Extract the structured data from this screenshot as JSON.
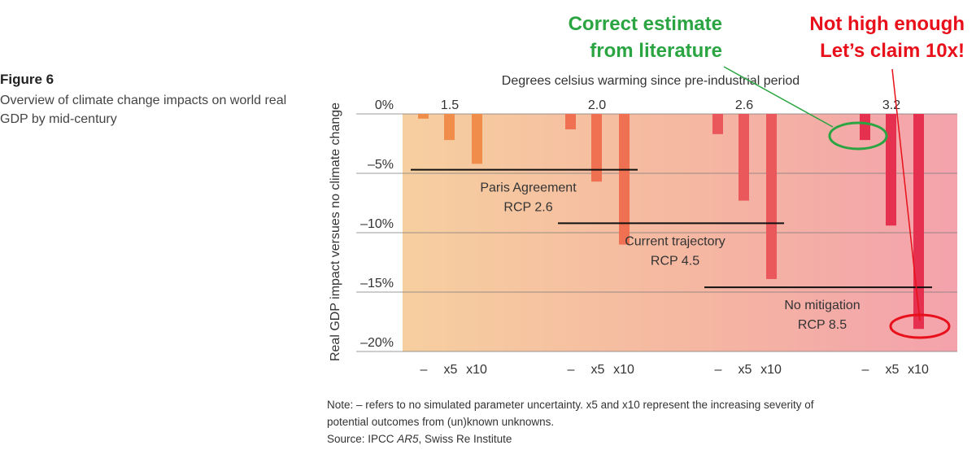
{
  "figure": {
    "label": "Figure 6",
    "description": "Overview of climate change impacts on world real GDP by mid-century"
  },
  "note": {
    "line1": "Note: – refers to no simulated parameter uncertainty. x5 and x10 represent the increasing severity of",
    "line2": "potential outcomes from (un)known unknowns.",
    "source_prefix": "Source: IPCC ",
    "source_italic": "AR5",
    "source_suffix": ", Swiss Re Institute"
  },
  "annotations": {
    "correct_line1": "Correct estimate",
    "correct_line2": "from literature",
    "claim_line1": "Not high enough",
    "claim_line2": "Let’s claim 10x!",
    "correct_color": "#2aa542",
    "claim_color": "#e8101b"
  },
  "chart_data": {
    "type": "bar",
    "title": "Degrees celsius warming since pre-industrial period",
    "ylabel": "Real GDP impact versues no climate change",
    "ylim": [
      -20,
      0
    ],
    "yticks": [
      0,
      -5,
      -10,
      -15,
      -20
    ],
    "ytick_labels": [
      "0%",
      "–5%",
      "–10%",
      "–15%",
      "–20%"
    ],
    "groups": [
      "1.5",
      "2.0",
      "2.6",
      "3.2"
    ],
    "subcategories": [
      "–",
      "x5",
      "x10"
    ],
    "series": [
      {
        "name": "–",
        "values": [
          -0.4,
          -1.3,
          -1.7,
          -2.2
        ]
      },
      {
        "name": "x5",
        "values": [
          -2.2,
          -5.7,
          -7.3,
          -9.4
        ]
      },
      {
        "name": "x10",
        "values": [
          -4.2,
          -11.0,
          -13.9,
          -18.1
        ]
      }
    ],
    "bar_colors": [
      "#f18d4a",
      "#ef7152",
      "#ea585b",
      "#e5304f"
    ],
    "scenarios": [
      {
        "label1": "Paris Agreement",
        "label2": "RCP 2.6",
        "value": -4.7
      },
      {
        "label1": "Current trajectory",
        "label2": "RCP 4.5",
        "value": -9.2
      },
      {
        "label1": "No mitigation",
        "label2": "RCP 8.5",
        "value": -14.6
      }
    ]
  }
}
